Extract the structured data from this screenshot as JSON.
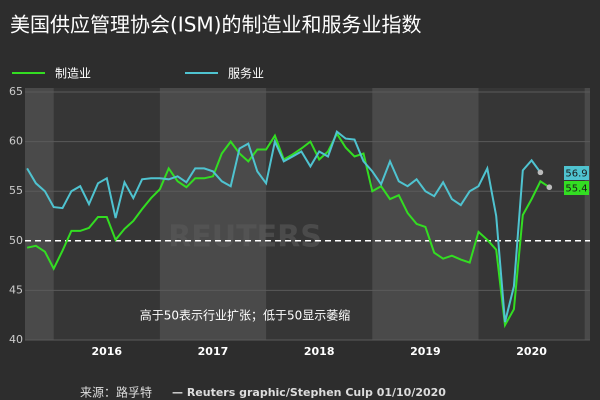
{
  "chart_data": {
    "type": "line",
    "title": "美国供应管理协会(ISM)的制造业和服务业指数",
    "annotation": "高于50表示行业扩张；低于50显示萎缩",
    "source": "来源：路孚特",
    "credit": "— Reuters graphic/Stephen Culp 01/10/2020",
    "watermark": "REUTERS",
    "x": [
      2015.75,
      2015.833,
      2015.917,
      2016,
      2016.083,
      2016.167,
      2016.25,
      2016.333,
      2016.417,
      2016.5,
      2016.583,
      2016.667,
      2016.75,
      2016.833,
      2016.917,
      2017,
      2017.083,
      2017.167,
      2017.25,
      2017.333,
      2017.417,
      2017.5,
      2017.583,
      2017.667,
      2017.75,
      2017.833,
      2017.917,
      2018,
      2018.083,
      2018.167,
      2018.25,
      2018.333,
      2018.417,
      2018.5,
      2018.583,
      2018.667,
      2018.75,
      2018.833,
      2018.917,
      2019,
      2019.083,
      2019.167,
      2019.25,
      2019.333,
      2019.417,
      2019.5,
      2019.583,
      2019.667,
      2019.75,
      2019.833,
      2019.917,
      2020,
      2020.083,
      2020.167,
      2020.25,
      2020.333,
      2020.417,
      2020.5,
      2020.583,
      2020.667
    ],
    "series": [
      {
        "name": "制造业",
        "color": "#33dd22",
        "values": [
          49.3,
          49.5,
          48.9,
          47.2,
          49.0,
          51.0,
          51.0,
          51.3,
          52.4,
          52.4,
          50.1,
          51.2,
          52.0,
          53.2,
          54.3,
          55.2,
          57.3,
          56.0,
          55.4,
          56.3,
          56.3,
          56.5,
          58.8,
          60.0,
          58.8,
          58.0,
          59.2,
          59.2,
          60.6,
          58.2,
          58.7,
          59.3,
          60.0,
          58.2,
          59.0,
          60.8,
          59.4,
          58.5,
          58.8,
          55.0,
          55.5,
          54.2,
          54.6,
          52.8,
          51.7,
          51.4,
          48.8,
          48.2,
          48.5,
          48.1,
          47.8,
          50.9,
          50.1,
          49.1,
          41.5,
          43.1,
          52.6,
          54.2,
          56.0,
          55.4
        ]
      },
      {
        "name": "服务业",
        "color": "#4fc3d0",
        "values": [
          57.3,
          55.8,
          55.0,
          53.4,
          53.3,
          55.0,
          55.5,
          53.7,
          55.8,
          56.3,
          52.3,
          55.9,
          54.3,
          56.2,
          56.3,
          56.3,
          56.2,
          56.5,
          55.9,
          57.3,
          57.3,
          57.0,
          56.0,
          55.5,
          59.3,
          59.8,
          57.0,
          55.8,
          60.0,
          58.0,
          58.5,
          59.0,
          57.5,
          59.0,
          58.5,
          61.0,
          60.3,
          60.2,
          58.0,
          57.0,
          55.7,
          58.0,
          56.0,
          55.5,
          56.2,
          55.0,
          54.5,
          55.9,
          54.2,
          53.6,
          55.0,
          55.5,
          57.3,
          52.5,
          41.8,
          45.4,
          57.1,
          58.1,
          56.9,
          null
        ]
      }
    ],
    "xlim": [
      2015.73,
      2021.05
    ],
    "xticks": [
      {
        "value": 2016.5,
        "label": "2016"
      },
      {
        "value": 2017.5,
        "label": "2017"
      },
      {
        "value": 2018.5,
        "label": "2018"
      },
      {
        "value": 2019.5,
        "label": "2019"
      },
      {
        "value": 2020.5,
        "label": "2020"
      }
    ],
    "ylim": [
      40,
      65
    ],
    "yticks": [
      40,
      45,
      50,
      55,
      60,
      65
    ],
    "reference_line": 50,
    "grid": true,
    "legend": "top-left"
  }
}
